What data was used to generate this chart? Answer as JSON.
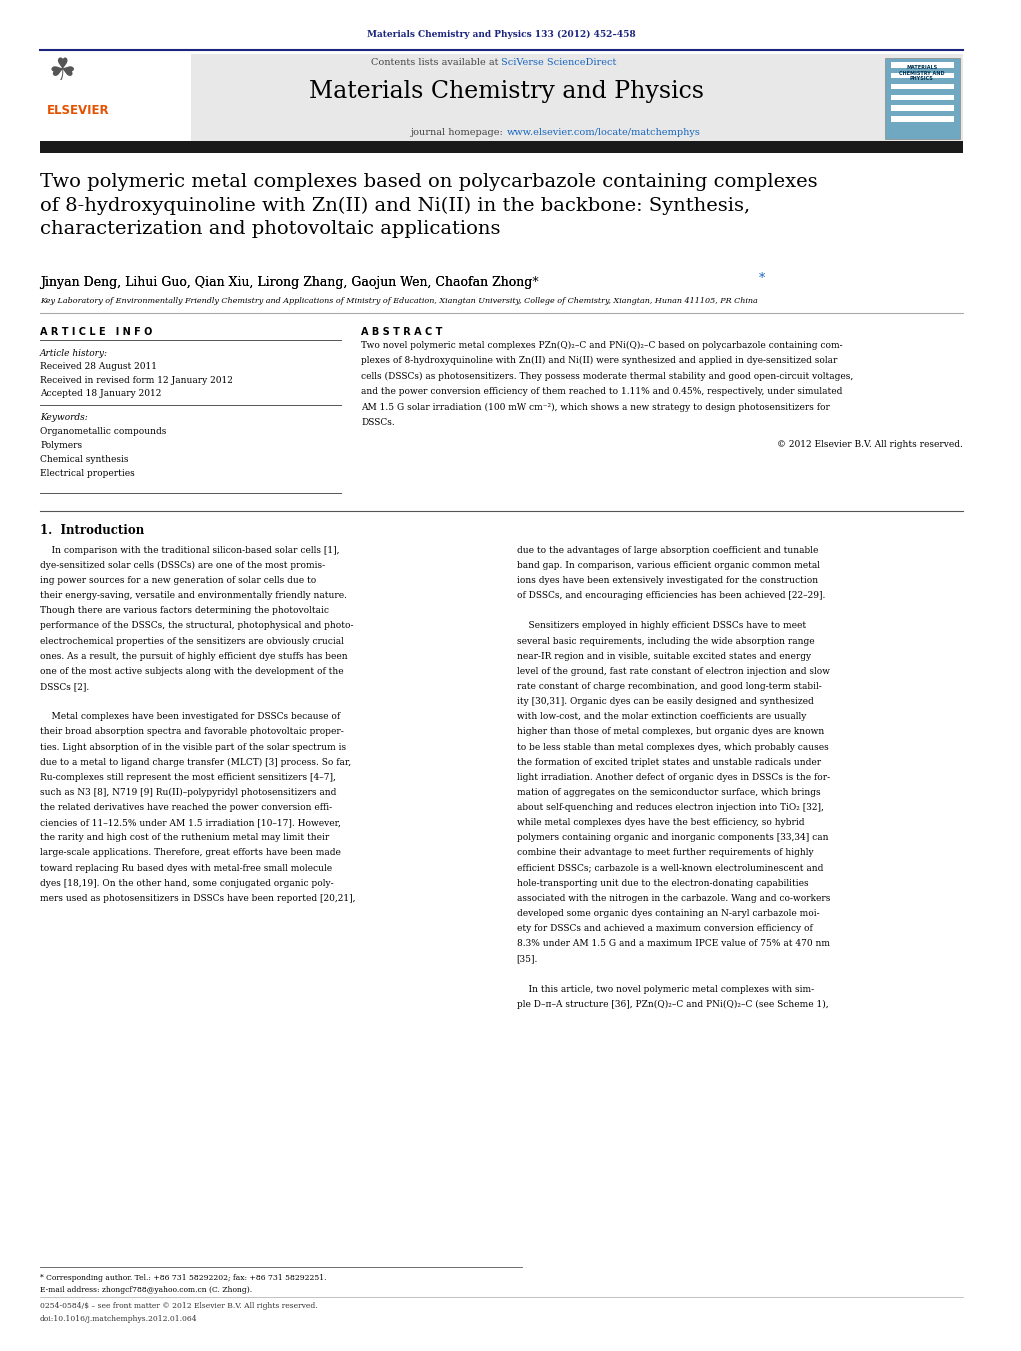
{
  "page_width": 10.21,
  "page_height": 13.51,
  "background_color": "#ffffff",
  "top_citation": "Materials Chemistry and Physics 133 (2012) 452–458",
  "top_citation_color": "#1a237e",
  "journal_name": "Materials Chemistry and Physics",
  "contents_line": "Contents lists available at SciVerse ScienceDirect",
  "header_bg": "#e8e8e8",
  "dark_bar_color": "#1a1a1a",
  "article_title": "Two polymeric metal complexes based on polycarbazole containing complexes\nof 8-hydroxyquinoline with Zn(II) and Ni(II) in the backbone: Synthesis,\ncharacterization and photovoltaic applications",
  "authors_plain": "Jinyan Deng, Lihui Guo, Qian Xiu, Lirong Zhang, Gaojun Wen, Chaofan Zhong",
  "affiliation": "Key Laboratory of Environmentally Friendly Chemistry and Applications of Ministry of Education, Xiangtan University, College of Chemistry, Xiangtan, Hunan 411105, PR China",
  "article_info_header": "A R T I C L E   I N F O",
  "abstract_header": "A B S T R A C T",
  "article_history_label": "Article history:",
  "received1": "Received 28 August 2011",
  "received2": "Received in revised form 12 January 2012",
  "accepted": "Accepted 18 January 2012",
  "keywords_label": "Keywords:",
  "keywords": [
    "Organometallic compounds",
    "Polymers",
    "Chemical synthesis",
    "Electrical properties"
  ],
  "copyright": "© 2012 Elsevier B.V. All rights reserved.",
  "section1_title": "1.  Introduction",
  "footer_note": "* Corresponding author. Tel.: +86 731 58292202; fax: +86 731 58292251.",
  "footer_email": "E-mail address: zhongcf788@yahoo.com.cn (C. Zhong).",
  "footer_issn": "0254-0584/$ – see front matter © 2012 Elsevier B.V. All rights reserved.",
  "footer_doi": "doi:10.1016/j.matchemphys.2012.01.064",
  "text_color": "#000000",
  "link_color": "#1565c0"
}
